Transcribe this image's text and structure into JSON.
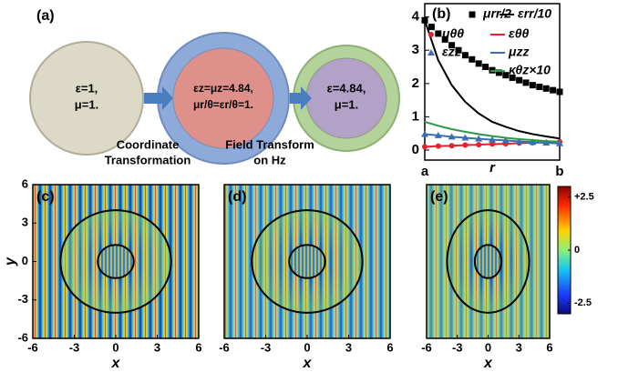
{
  "diagram": {
    "label": "(a)",
    "nodes": [
      {
        "lines": [
          "ε=1,",
          "μ=1."
        ]
      },
      {
        "lines": [
          "εz=μz=4.84,",
          "μr/θ=εr/θ=1."
        ]
      },
      {
        "lines": [
          "ε=4.84,",
          "μ=1."
        ]
      }
    ],
    "edges": [
      {
        "lines": [
          "Coordinate",
          "Transformation"
        ]
      },
      {
        "lines": [
          "Field Transform",
          "on Hz"
        ]
      }
    ]
  },
  "chart_data": [
    {
      "type": "line",
      "title": "(b)",
      "xlabel": "r",
      "categories": [
        "a",
        null,
        null,
        null,
        null,
        null,
        null,
        null,
        null,
        null,
        "b"
      ],
      "ylim": [
        -0.3,
        4.4
      ],
      "yticks": [
        0,
        1,
        2,
        3,
        4
      ],
      "series": [
        {
          "name": "μrr/2",
          "color": "#000000",
          "marker": "square",
          "values": [
            3.9,
            3.5,
            3.15,
            2.85,
            2.6,
            2.4,
            2.25,
            2.1,
            1.95,
            1.85,
            1.75
          ]
        },
        {
          "name": "εrr/10",
          "color": "#000000",
          "values": [
            3.9,
            2.7,
            1.95,
            1.45,
            1.1,
            0.85,
            0.7,
            0.57,
            0.48,
            0.41,
            0.35
          ]
        },
        {
          "name": "μθθ",
          "color": "#e8202a",
          "marker": "circle",
          "values": [
            0.1,
            0.12,
            0.13,
            0.15,
            0.16,
            0.18,
            0.19,
            0.21,
            0.22,
            0.23,
            0.25
          ]
        },
        {
          "name": "εθθ",
          "color": "#e8202a",
          "values": [
            0.1,
            0.12,
            0.13,
            0.15,
            0.16,
            0.18,
            0.19,
            0.21,
            0.22,
            0.23,
            0.25
          ]
        },
        {
          "name": "εzz",
          "color": "#3a6fb5",
          "marker": "triangle",
          "values": [
            0.48,
            0.44,
            0.4,
            0.37,
            0.34,
            0.31,
            0.29,
            0.26,
            0.24,
            0.22,
            0.2
          ]
        },
        {
          "name": "μzz",
          "color": "#3a6fb5",
          "values": [
            0.48,
            0.44,
            0.4,
            0.37,
            0.34,
            0.31,
            0.29,
            0.26,
            0.24,
            0.22,
            0.2
          ]
        },
        {
          "name": "κθz×10",
          "color": "#2a9a48",
          "values": [
            0.85,
            0.73,
            0.63,
            0.55,
            0.48,
            0.42,
            0.37,
            0.33,
            0.3,
            0.27,
            0.25
          ]
        }
      ]
    },
    {
      "type": "heatmap",
      "title": "(c)",
      "xlabel": "x",
      "ylabel": "y",
      "xlim": [
        -6,
        6
      ],
      "ylim": [
        -6,
        6
      ],
      "xticks": [
        -6,
        -3,
        0,
        3,
        6
      ],
      "yticks": [
        -6,
        -3,
        0,
        3,
        6
      ]
    },
    {
      "type": "heatmap",
      "title": "(d)",
      "xlabel": "x",
      "xlim": [
        -6,
        6
      ],
      "ylim": [
        -6,
        6
      ],
      "xticks": [
        -6,
        -3,
        0,
        3,
        6
      ]
    },
    {
      "type": "heatmap",
      "title": "(e)",
      "xlabel": "x",
      "xlim": [
        -6,
        6
      ],
      "ylim": [
        -6,
        6
      ],
      "xticks": [
        -6,
        -3,
        0,
        3,
        6
      ],
      "colorbar": {
        "lim": [
          -3,
          3
        ],
        "ticks": [
          {
            "value": 2.5,
            "label": "+2.5"
          },
          0,
          -2.5
        ]
      }
    }
  ]
}
